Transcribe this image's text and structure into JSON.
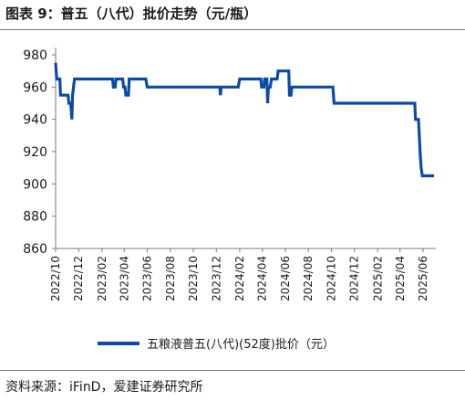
{
  "title": "图表 9：普五（八代）批价走势（元/瓶）",
  "source": "资料来源：iFinD，爱建证券研究所",
  "colors": {
    "series": "#0b4aa8",
    "axis": "#7a7a7a",
    "text": "#1a1a1a"
  },
  "chart_data": {
    "type": "line",
    "title": "普五（八代）批价走势（元/瓶）",
    "xlabel": "",
    "ylabel": "",
    "x_range": [
      "2022-10-01",
      "2025-06-30"
    ],
    "ylim": [
      860,
      980
    ],
    "y_ticks": [
      860,
      880,
      900,
      920,
      940,
      960,
      980
    ],
    "x_ticks": [
      "2022/10",
      "2022/12",
      "2023/02",
      "2023/04",
      "2023/06",
      "2023/08",
      "2023/10",
      "2023/12",
      "2024/02",
      "2024/04",
      "2024/06",
      "2024/08",
      "2024/10",
      "2024/12",
      "2025/02",
      "2025/04",
      "2025/06"
    ],
    "grid": false,
    "legend_position": "bottom",
    "series": [
      {
        "name": "五粮液普五(八代)(52度)批价（元）",
        "color": "#0b4aa8",
        "points": [
          [
            "2022-10-01",
            975
          ],
          [
            "2022-10-04",
            965
          ],
          [
            "2022-10-12",
            965
          ],
          [
            "2022-10-14",
            955
          ],
          [
            "2022-11-03",
            955
          ],
          [
            "2022-11-05",
            950
          ],
          [
            "2022-11-10",
            950
          ],
          [
            "2022-11-13",
            940
          ],
          [
            "2022-11-15",
            955
          ],
          [
            "2022-11-20",
            965
          ],
          [
            "2023-03-01",
            965
          ],
          [
            "2023-03-03",
            960
          ],
          [
            "2023-03-08",
            960
          ],
          [
            "2023-03-10",
            965
          ],
          [
            "2023-03-28",
            965
          ],
          [
            "2023-03-30",
            960
          ],
          [
            "2023-04-03",
            960
          ],
          [
            "2023-04-05",
            955
          ],
          [
            "2023-04-12",
            955
          ],
          [
            "2023-04-14",
            965
          ],
          [
            "2023-05-28",
            965
          ],
          [
            "2023-06-01",
            960
          ],
          [
            "2023-12-10",
            960
          ],
          [
            "2023-12-12",
            955
          ],
          [
            "2023-12-14",
            960
          ],
          [
            "2024-01-28",
            960
          ],
          [
            "2024-02-01",
            965
          ],
          [
            "2024-03-28",
            965
          ],
          [
            "2024-03-30",
            960
          ],
          [
            "2024-04-05",
            960
          ],
          [
            "2024-04-07",
            965
          ],
          [
            "2024-04-13",
            965
          ],
          [
            "2024-04-15",
            950
          ],
          [
            "2024-04-17",
            960
          ],
          [
            "2024-04-22",
            960
          ],
          [
            "2024-04-25",
            965
          ],
          [
            "2024-05-10",
            965
          ],
          [
            "2024-05-13",
            970
          ],
          [
            "2024-06-10",
            970
          ],
          [
            "2024-06-12",
            955
          ],
          [
            "2024-06-16",
            955
          ],
          [
            "2024-06-18",
            960
          ],
          [
            "2024-10-05",
            960
          ],
          [
            "2024-10-08",
            950
          ],
          [
            "2025-05-10",
            950
          ],
          [
            "2025-05-12",
            940
          ],
          [
            "2025-05-20",
            940
          ],
          [
            "2025-05-24",
            920
          ],
          [
            "2025-05-27",
            910
          ],
          [
            "2025-05-30",
            905
          ],
          [
            "2025-06-30",
            905
          ]
        ]
      }
    ]
  }
}
